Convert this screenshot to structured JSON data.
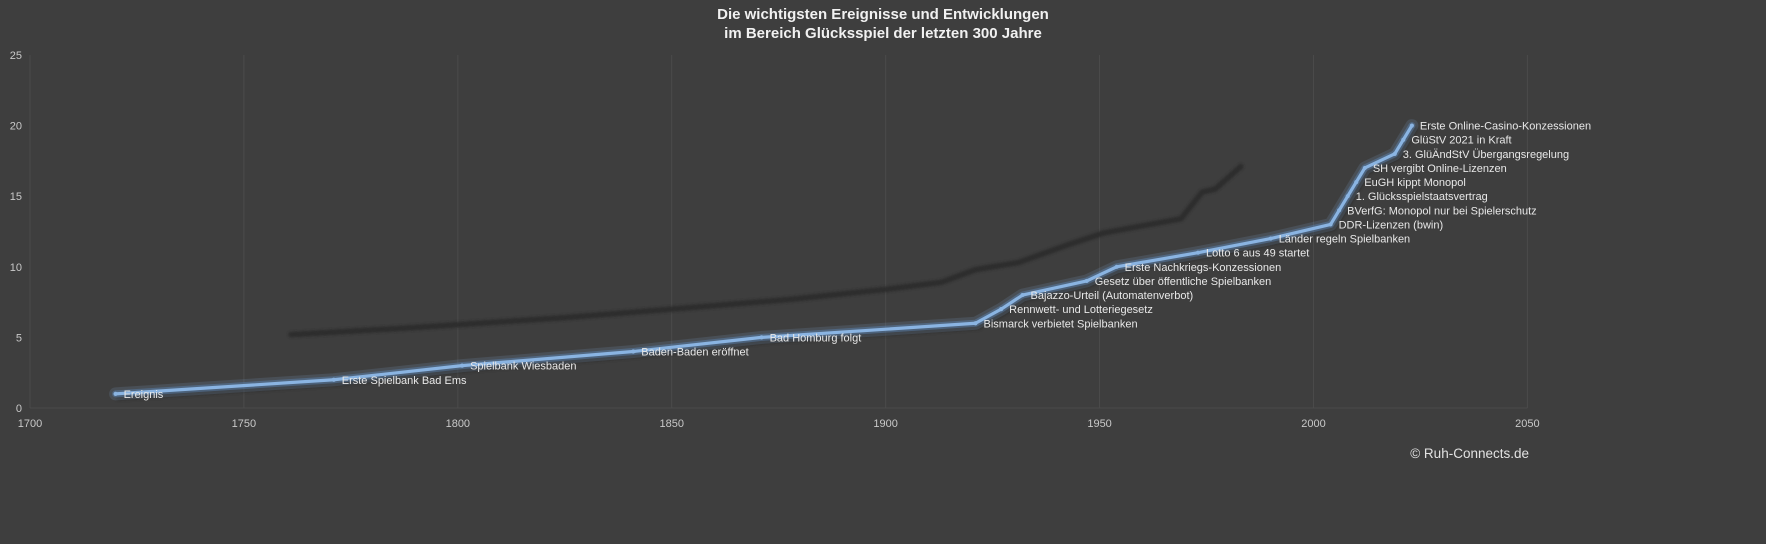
{
  "title": {
    "line1": "Die wichtigsten Ereignisse und Entwicklungen",
    "line2": "im Bereich Glücksspiel der letzten 300 Jahre"
  },
  "footer": {
    "copyright": "© Ruh-Connects.de"
  },
  "chart_data": {
    "type": "line",
    "title": "Die wichtigsten Ereignisse und Entwicklungen im Bereich Glücksspiel der letzten 300 Jahre",
    "xlabel": "",
    "ylabel": "",
    "legend": "none",
    "grid": "vertical",
    "x_axis": {
      "min": 1700,
      "max": 2050,
      "tick_interval": 50,
      "ticks": [
        1700,
        1750,
        1800,
        1850,
        1900,
        1950,
        2000,
        2050
      ]
    },
    "y_axis": {
      "min": 0,
      "max": 25,
      "tick_interval": 5,
      "ticks": [
        0,
        5,
        10,
        15,
        20,
        25
      ]
    },
    "series": [
      {
        "name": "Ereignis",
        "points": [
          {
            "x": 1720,
            "y": 1,
            "label": "Ereignis"
          },
          {
            "x": 1771,
            "y": 2,
            "label": "Erste Spielbank Bad Ems"
          },
          {
            "x": 1801,
            "y": 3,
            "label": "Spielbank Wiesbaden"
          },
          {
            "x": 1841,
            "y": 4,
            "label": "Baden-Baden eröffnet"
          },
          {
            "x": 1871,
            "y": 5,
            "label": "Bad Homburg folgt"
          },
          {
            "x": 1921,
            "y": 6,
            "label": "Bismarck verbietet Spielbanken"
          },
          {
            "x": 1927,
            "y": 7,
            "label": "Rennwett- und Lotteriegesetz"
          },
          {
            "x": 1932,
            "y": 8,
            "label": "Bajazzo-Urteil (Automatenverbot)"
          },
          {
            "x": 1947,
            "y": 9,
            "label": "Gesetz über öffentliche Spielbanken"
          },
          {
            "x": 1954,
            "y": 10,
            "label": "Erste Nachkriegs-Konzessionen"
          },
          {
            "x": 1973,
            "y": 11,
            "label": "Lotto 6 aus 49 startet"
          },
          {
            "x": 1990,
            "y": 12,
            "label": "Länder regeln Spielbanken"
          },
          {
            "x": 2004,
            "y": 13,
            "label": "DDR-Lizenzen (bwin)"
          },
          {
            "x": 2006,
            "y": 14,
            "label": "BVerfG: Monopol nur bei Spielerschutz"
          },
          {
            "x": 2008,
            "y": 15,
            "label": "1. Glücksspielstaatsvertrag"
          },
          {
            "x": 2010,
            "y": 16,
            "label": "EuGH kippt Monopol"
          },
          {
            "x": 2012,
            "y": 17,
            "label": "SH vergibt Online-Lizenzen"
          },
          {
            "x": 2019,
            "y": 18,
            "label": "3. GlüÄndStV Übergangsregelung"
          },
          {
            "x": 2021,
            "y": 19,
            "label": "GlüStV 2021 in Kraft"
          },
          {
            "x": 2023,
            "y": 20,
            "label": "Erste Online-Casino-Konzessionen"
          }
        ]
      }
    ],
    "shadow_series": {
      "note": "dark offset shadow line visible behind the main line",
      "points": [
        [
          1761,
          5.2
        ],
        [
          1790,
          5.7
        ],
        [
          1825,
          6.4
        ],
        [
          1850,
          7.0
        ],
        [
          1878,
          7.7
        ],
        [
          1900,
          8.4
        ],
        [
          1913,
          8.9
        ],
        [
          1921,
          9.8
        ],
        [
          1931,
          10.3
        ],
        [
          1943,
          11.6
        ],
        [
          1951,
          12.4
        ],
        [
          1960,
          12.9
        ],
        [
          1969,
          13.4
        ],
        [
          1974,
          15.3
        ],
        [
          1977,
          15.5
        ],
        [
          1983,
          17.1
        ]
      ]
    },
    "colors": {
      "background": "#3e3e3e",
      "grid": "#4b4b4b",
      "tick": "#c9c9c9",
      "label": "#e8e8e8",
      "title": "#f1f1f1",
      "line_core": "#8ab4e2",
      "line_mid": "#5f8fc6",
      "glow": "#8fb9e8",
      "shadow": "#2b2b2b",
      "under_shadow": "#262626"
    }
  }
}
